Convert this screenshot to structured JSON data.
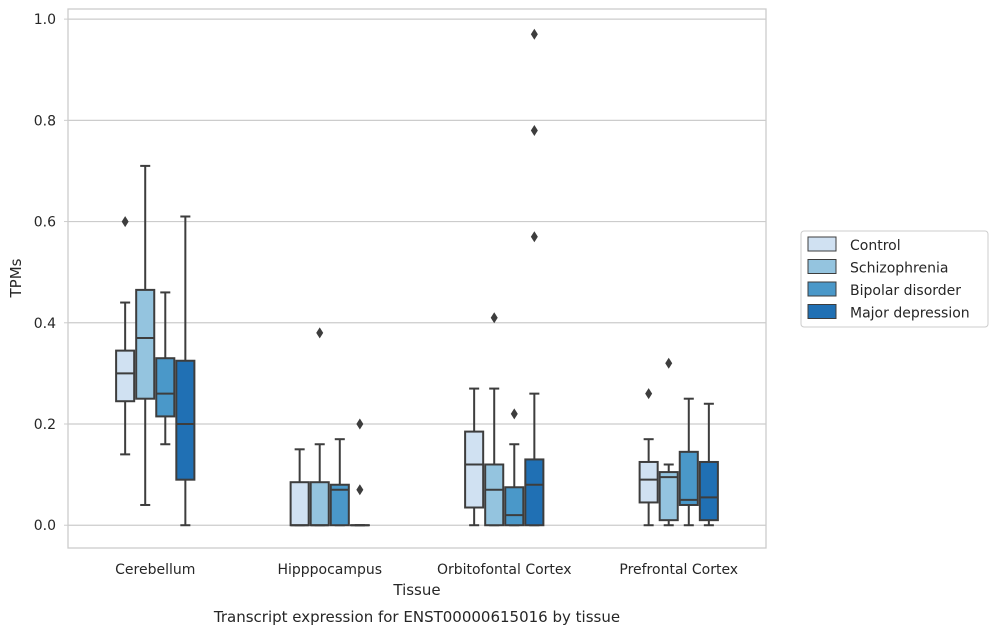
{
  "chart_data": {
    "type": "box",
    "xlabel": "Tissue",
    "ylabel": "TPMs",
    "caption": "Transcript expression for ENST00000615016 by tissue",
    "ylim": [
      -0.045,
      1.02
    ],
    "yticks": [
      0.0,
      0.2,
      0.4,
      0.6,
      0.8,
      1.0
    ],
    "ytick_labels": [
      "0.0",
      "0.2",
      "0.4",
      "0.6",
      "0.8",
      "1.0"
    ],
    "grid": "horizontal",
    "legend_position": "right",
    "categories": [
      "Cerebellum",
      "Hipppocampus",
      "Orbitofontal Cortex",
      "Prefrontal Cortex"
    ],
    "series": [
      {
        "name": "Control",
        "color": "#d0e1f2",
        "boxes": [
          {
            "whisker_low": 0.14,
            "q1": 0.245,
            "median": 0.3,
            "q3": 0.345,
            "whisker_high": 0.44,
            "outliers": [
              0.6
            ]
          },
          {
            "whisker_low": 0.0,
            "q1": 0.0,
            "median": 0.0,
            "q3": 0.085,
            "whisker_high": 0.15,
            "outliers": []
          },
          {
            "whisker_low": 0.0,
            "q1": 0.035,
            "median": 0.12,
            "q3": 0.185,
            "whisker_high": 0.27,
            "outliers": []
          },
          {
            "whisker_low": 0.0,
            "q1": 0.045,
            "median": 0.09,
            "q3": 0.125,
            "whisker_high": 0.17,
            "outliers": [
              0.26
            ]
          }
        ]
      },
      {
        "name": "Schizophrenia",
        "color": "#94c4df",
        "boxes": [
          {
            "whisker_low": 0.04,
            "q1": 0.25,
            "median": 0.37,
            "q3": 0.465,
            "whisker_high": 0.71,
            "outliers": []
          },
          {
            "whisker_low": 0.0,
            "q1": 0.0,
            "median": 0.0,
            "q3": 0.085,
            "whisker_high": 0.16,
            "outliers": [
              0.38
            ]
          },
          {
            "whisker_low": 0.0,
            "q1": 0.0,
            "median": 0.07,
            "q3": 0.12,
            "whisker_high": 0.27,
            "outliers": [
              0.41
            ]
          },
          {
            "whisker_low": 0.0,
            "q1": 0.01,
            "median": 0.095,
            "q3": 0.105,
            "whisker_high": 0.12,
            "outliers": [
              0.32
            ]
          }
        ]
      },
      {
        "name": "Bipolar disorder",
        "color": "#4a98c9",
        "boxes": [
          {
            "whisker_low": 0.16,
            "q1": 0.215,
            "median": 0.26,
            "q3": 0.33,
            "whisker_high": 0.46,
            "outliers": []
          },
          {
            "whisker_low": 0.0,
            "q1": 0.0,
            "median": 0.07,
            "q3": 0.08,
            "whisker_high": 0.17,
            "outliers": []
          },
          {
            "whisker_low": 0.0,
            "q1": 0.0,
            "median": 0.02,
            "q3": 0.075,
            "whisker_high": 0.16,
            "outliers": [
              0.22
            ]
          },
          {
            "whisker_low": 0.0,
            "q1": 0.04,
            "median": 0.05,
            "q3": 0.145,
            "whisker_high": 0.25,
            "outliers": []
          }
        ]
      },
      {
        "name": "Major depression",
        "color": "#2070b4",
        "boxes": [
          {
            "whisker_low": 0.0,
            "q1": 0.09,
            "median": 0.2,
            "q3": 0.325,
            "whisker_high": 0.61,
            "outliers": []
          },
          {
            "whisker_low": 0.0,
            "q1": 0.0,
            "median": 0.0,
            "q3": 0.0,
            "whisker_high": 0.0,
            "outliers": [
              0.07,
              0.2
            ]
          },
          {
            "whisker_low": 0.0,
            "q1": 0.0,
            "median": 0.08,
            "q3": 0.13,
            "whisker_high": 0.26,
            "outliers": [
              0.57,
              0.78,
              0.97
            ]
          },
          {
            "whisker_low": 0.0,
            "q1": 0.01,
            "median": 0.055,
            "q3": 0.125,
            "whisker_high": 0.24,
            "outliers": []
          }
        ]
      }
    ]
  }
}
